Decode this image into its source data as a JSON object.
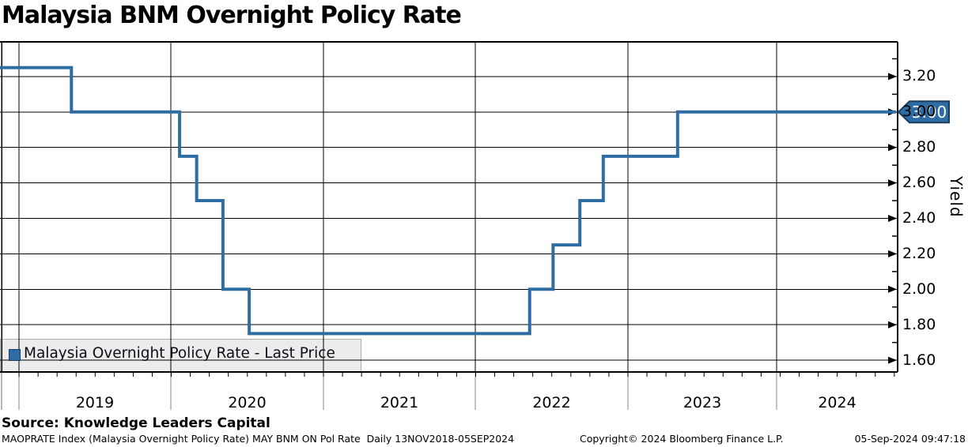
{
  "title": "Malaysia BNM Overnight Policy Rate",
  "legend": {
    "label": "Malaysia Overnight Policy Rate - Last Price"
  },
  "y_axis": {
    "label": "Yield",
    "ticks": [
      "3.20",
      "3.00",
      "2.80",
      "2.60",
      "2.40",
      "2.20",
      "2.00",
      "1.80",
      "1.60"
    ]
  },
  "x_axis": {
    "years": [
      "2019",
      "2020",
      "2021",
      "2022",
      "2023",
      "2024"
    ]
  },
  "last_price_tag": "3.00",
  "footer": {
    "source": "Source: Knowledge Leaders Capital",
    "index_info": "MAOPRATE Index (Malaysia Overnight Policy Rate) MAY BNM ON Pol Rate  Daily 13NOV2018-05SEP2024",
    "copyright": "Copyright© 2024 Bloomberg Finance L.P.",
    "timestamp": "05-Sep-2024 09:47:18"
  },
  "colors": {
    "line": "#2E6DA4",
    "tag_fill": "#2E6DA4",
    "tag_border": "#1C3D5F",
    "tag_text": "#FFFFFF",
    "grid": "#000000",
    "divider_below_axis": "#888888",
    "legend_bg": "#ECECEC",
    "legend_border": "#ADADAD"
  },
  "chart_data": {
    "type": "line",
    "step": true,
    "title": "Malaysia BNM Overnight Policy Rate",
    "ylabel": "Yield",
    "ylim": [
      1.53,
      3.4
    ],
    "y_major_ticks": [
      3.2,
      3.0,
      2.8,
      2.6,
      2.4,
      2.2,
      2.0,
      1.8,
      1.6
    ],
    "x_range": [
      "2018-11-13",
      "2024-09-05"
    ],
    "x_tick_years": [
      2019,
      2020,
      2021,
      2022,
      2023,
      2024
    ],
    "grid": true,
    "legend_position": "bottom-left",
    "last_price": 3.0,
    "series": [
      {
        "name": "Malaysia Overnight Policy Rate - Last Price",
        "points": [
          {
            "date": "2018-11-13",
            "value": 3.25
          },
          {
            "date": "2019-05-07",
            "value": 3.0
          },
          {
            "date": "2020-01-22",
            "value": 2.75
          },
          {
            "date": "2020-03-03",
            "value": 2.5
          },
          {
            "date": "2020-05-05",
            "value": 2.0
          },
          {
            "date": "2020-07-07",
            "value": 1.75
          },
          {
            "date": "2022-05-11",
            "value": 2.0
          },
          {
            "date": "2022-07-06",
            "value": 2.25
          },
          {
            "date": "2022-09-08",
            "value": 2.5
          },
          {
            "date": "2022-11-03",
            "value": 2.75
          },
          {
            "date": "2023-05-03",
            "value": 3.0
          },
          {
            "date": "2024-09-05",
            "value": 3.0
          }
        ]
      }
    ]
  }
}
